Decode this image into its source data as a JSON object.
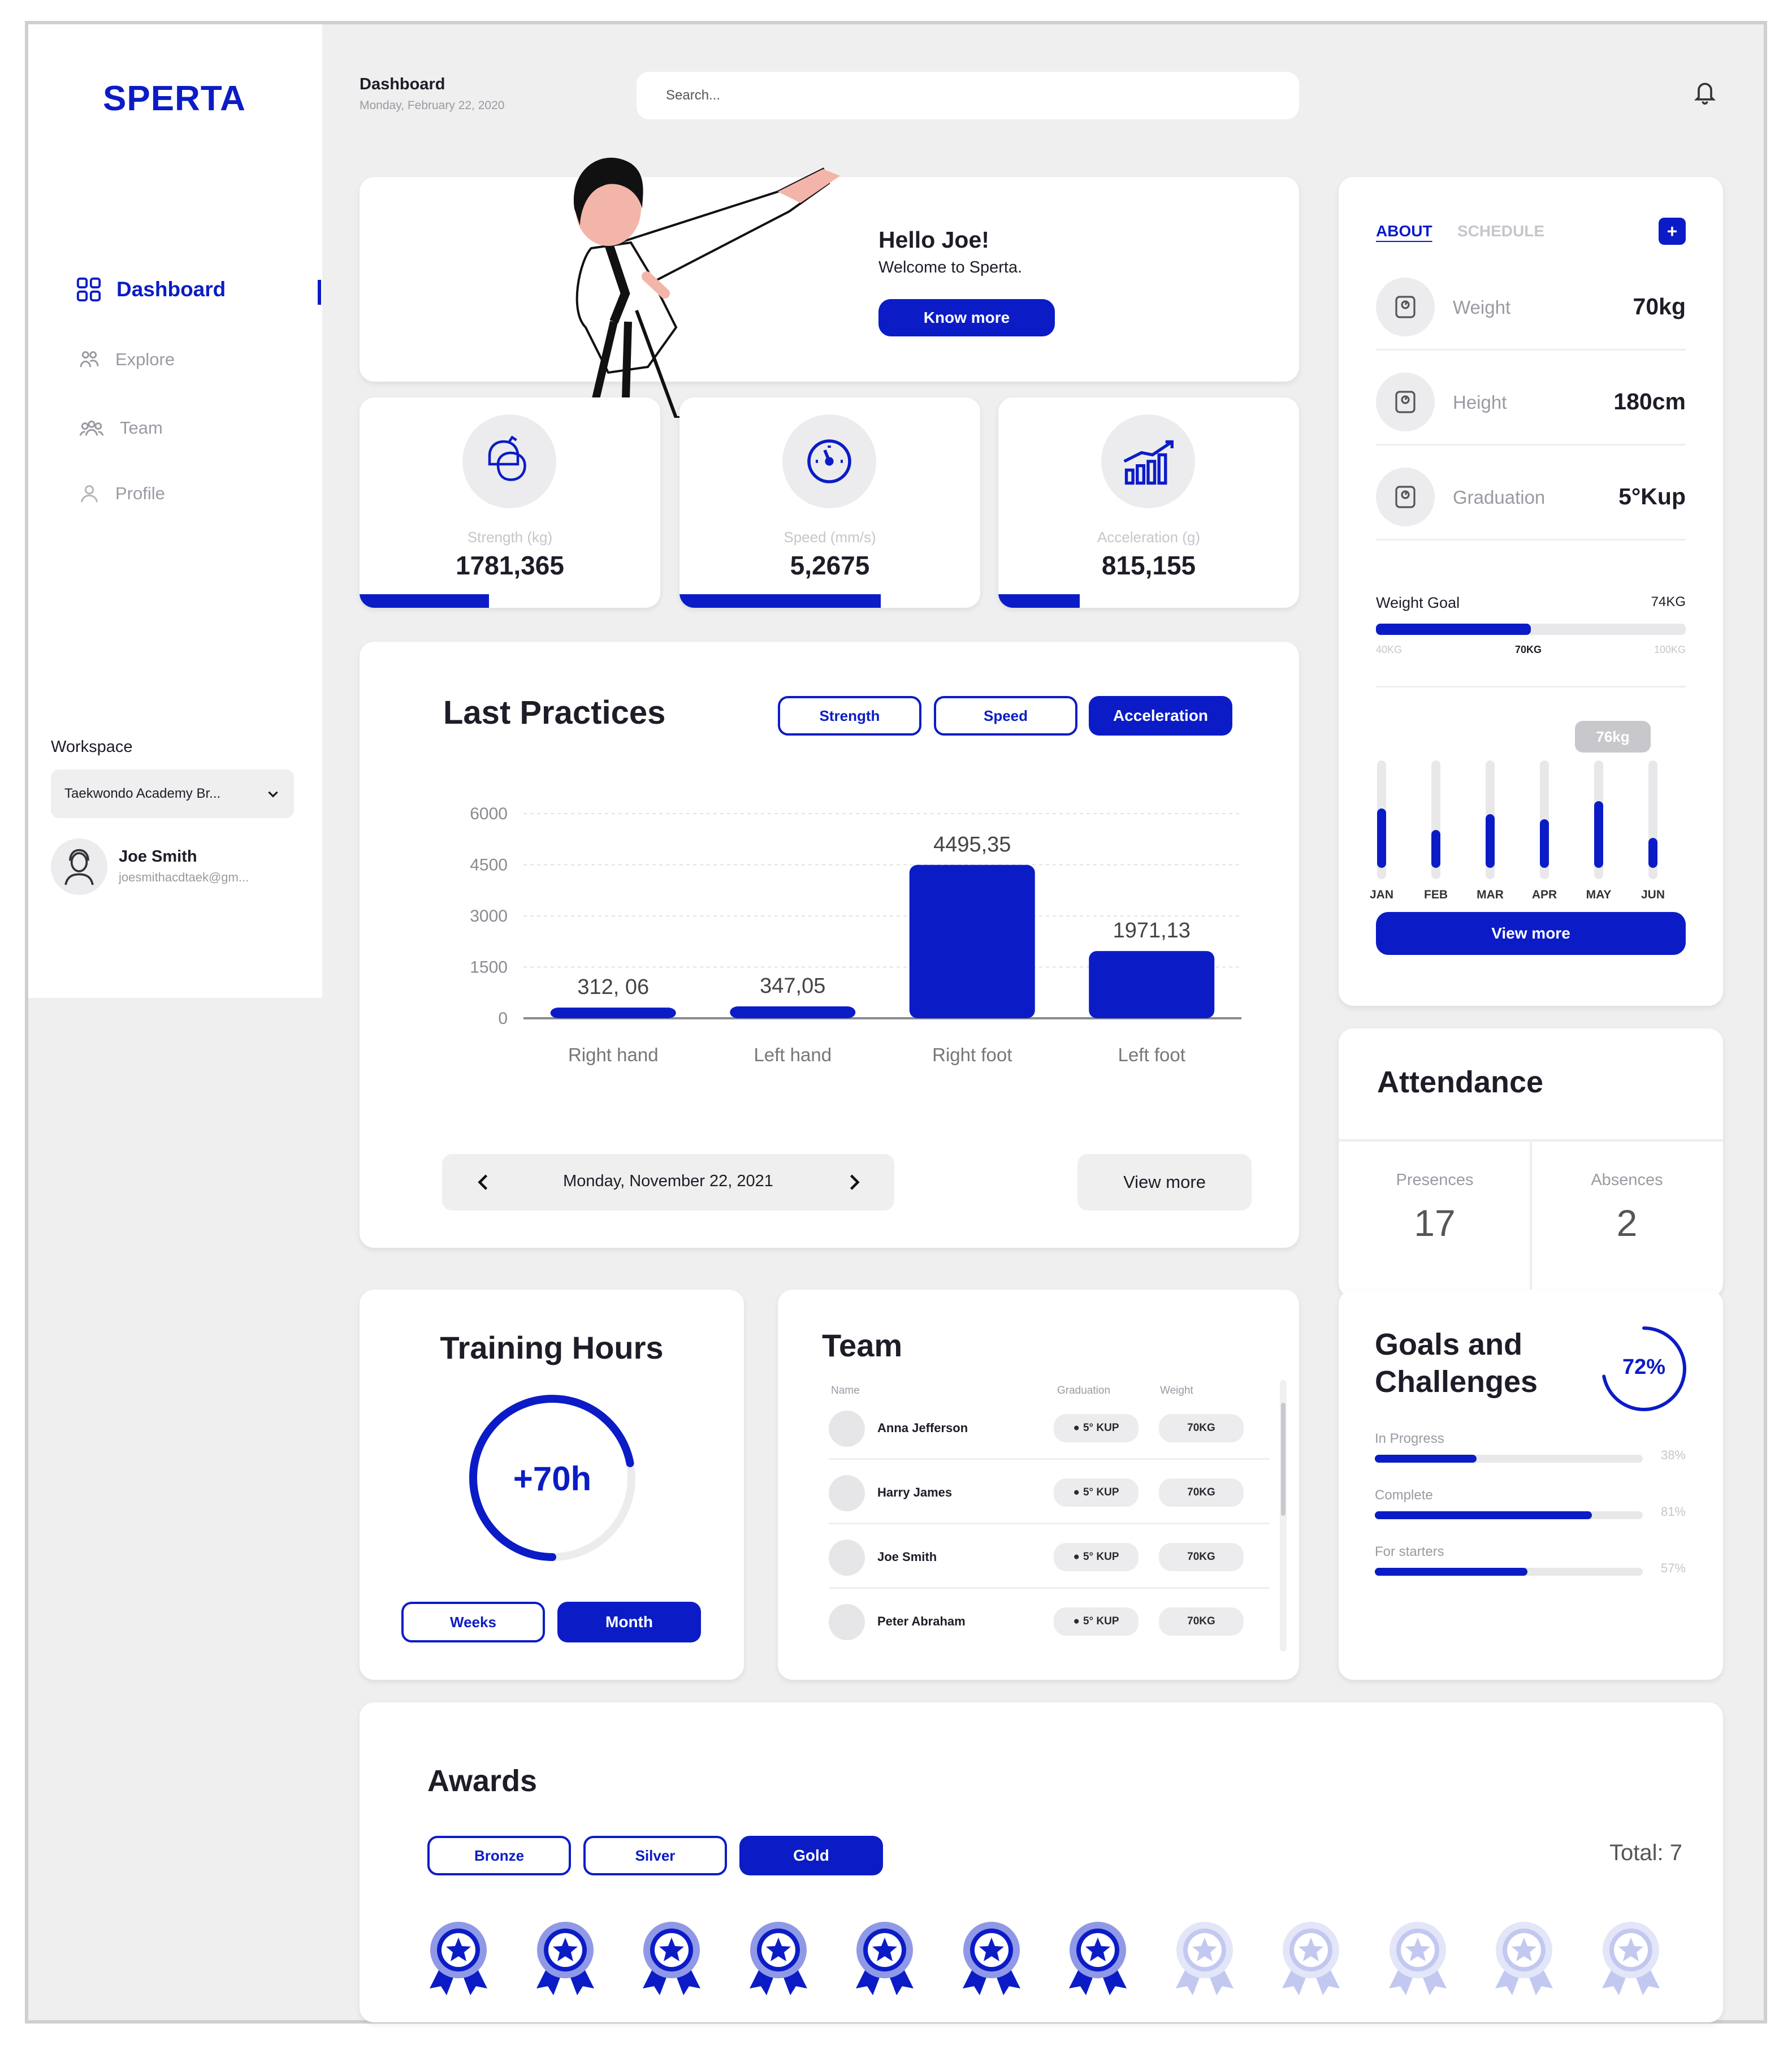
{
  "app": {
    "logo": "SPERTA"
  },
  "header": {
    "title": "Dashboard",
    "date": "Monday, February 22, 2020",
    "search_placeholder": "Search..."
  },
  "sidebar": {
    "items": [
      {
        "label": "Dashboard",
        "icon": "grid-icon",
        "active": true
      },
      {
        "label": "Explore",
        "icon": "people-network-icon",
        "active": false
      },
      {
        "label": "Team",
        "icon": "group-icon",
        "active": false
      },
      {
        "label": "Profile",
        "icon": "user-icon",
        "active": false
      }
    ],
    "workspace_label": "Workspace",
    "workspace_value": "Taekwondo Academy Br...",
    "user_name": "Joe Smith",
    "user_email": "joesmithacdtaek@gm..."
  },
  "hero": {
    "greeting": "Hello Joe!",
    "welcome": "Welcome to Sperta.",
    "button": "Know more"
  },
  "stats": [
    {
      "label": "Strength (kg)",
      "value": "1781,365",
      "icon": "boxing-glove-icon",
      "progress": 0.43
    },
    {
      "label": "Speed (mm/s)",
      "value": "5,2675",
      "icon": "speedometer-icon",
      "progress": 0.67
    },
    {
      "label": "Acceleration (g)",
      "value": "815,155",
      "icon": "growth-chart-icon",
      "progress": 0.27
    }
  ],
  "practices": {
    "title": "Last Practices",
    "filters": [
      {
        "label": "Strength",
        "active": false
      },
      {
        "label": "Speed",
        "active": false
      },
      {
        "label": "Acceleration",
        "active": true
      }
    ],
    "date": "Monday, November 22, 2021",
    "view_more": "View more"
  },
  "chart_data": {
    "type": "bar",
    "title": "Last Practices",
    "categories": [
      "Right hand",
      "Left hand",
      "Right foot",
      "Left foot"
    ],
    "values": [
      312.06,
      347.05,
      4495.35,
      1971.13
    ],
    "value_labels": [
      "312, 06",
      "347,05",
      "4495,35",
      "1971,13"
    ],
    "y_ticks": [
      "6000",
      "4500",
      "3000",
      "1500",
      "0"
    ],
    "ylim": [
      0,
      6000
    ],
    "color": "#0b1cc6",
    "grid": true
  },
  "about": {
    "tabs": [
      {
        "label": "ABOUT",
        "active": true
      },
      {
        "label": "SCHEDULE",
        "active": false
      }
    ],
    "add_icon": "plus-icon",
    "rows": [
      {
        "label": "Weight",
        "value": "70kg",
        "icon": "scale-icon"
      },
      {
        "label": "Height",
        "value": "180cm",
        "icon": "scale-icon"
      },
      {
        "label": "Graduation",
        "value": "5°Kup",
        "icon": "scale-icon"
      }
    ],
    "goal_label": "Weight Goal",
    "goal_value": "74KG",
    "goal_min": "40KG",
    "goal_current": "70KG",
    "goal_max": "100KG",
    "goal_progress": 0.5,
    "months": [
      "JAN",
      "FEB",
      "MAR",
      "APR",
      "MAY",
      "JUN"
    ],
    "month_levels": [
      0.55,
      0.35,
      0.5,
      0.45,
      0.62,
      0.28
    ],
    "tooltip": "76kg",
    "view_more": "View more"
  },
  "attendance": {
    "title": "Attendance",
    "presences_label": "Presences",
    "presences": "17",
    "absences_label": "Absences",
    "absences": "2"
  },
  "training": {
    "title": "Training Hours",
    "value": "+70h",
    "progress": 0.72,
    "weeks": "Weeks",
    "month": "Month"
  },
  "team": {
    "title": "Team",
    "headers": {
      "name": "Name",
      "graduation": "Graduation",
      "weight": "Weight"
    },
    "members": [
      {
        "name": "Anna Jefferson",
        "graduation": "5° KUP",
        "weight": "70KG"
      },
      {
        "name": "Harry James",
        "graduation": "5° KUP",
        "weight": "70KG"
      },
      {
        "name": "Joe Smith",
        "graduation": "5° KUP",
        "weight": "70KG"
      },
      {
        "name": "Peter Abraham",
        "graduation": "5° KUP",
        "weight": "70KG"
      }
    ]
  },
  "goals": {
    "title_line1": "Goals and",
    "title_line2": "Challenges",
    "percent": "72%",
    "percent_value": 0.72,
    "items": [
      {
        "label": "In Progress",
        "value": "38%",
        "progress": 0.38
      },
      {
        "label": "Complete",
        "value": "81%",
        "progress": 0.81
      },
      {
        "label": "For starters",
        "value": "57%",
        "progress": 0.57
      }
    ]
  },
  "awards": {
    "title": "Awards",
    "filters": [
      {
        "label": "Bronze",
        "active": false
      },
      {
        "label": "Silver",
        "active": false
      },
      {
        "label": "Gold",
        "active": true
      }
    ],
    "total": "Total: 7",
    "earned": 7,
    "slots": 12,
    "icon": "medal-icon"
  },
  "colors": {
    "accent": "#0b1cc6",
    "background": "#efefef",
    "card": "#ffffff"
  }
}
